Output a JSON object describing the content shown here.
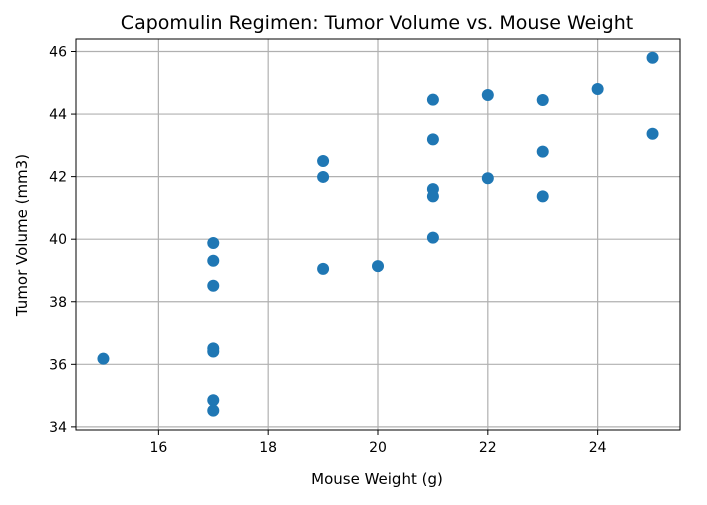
{
  "chart_data": {
    "type": "scatter",
    "title": "Capomulin Regimen: Tumor Volume vs. Mouse Weight",
    "xlabel": "Mouse Weight (g)",
    "ylabel": "Tumor Volume (mm3)",
    "xlim": [
      14.5,
      25.5
    ],
    "ylim": [
      33.9,
      46.4
    ],
    "xticks": [
      16,
      18,
      20,
      22,
      24
    ],
    "yticks": [
      34,
      36,
      38,
      40,
      42,
      44,
      46
    ],
    "grid": true,
    "marker_color": "#1f77b4",
    "points": [
      {
        "x": 15,
        "y": 36.18
      },
      {
        "x": 17,
        "y": 39.88
      },
      {
        "x": 17,
        "y": 39.31
      },
      {
        "x": 17,
        "y": 38.51
      },
      {
        "x": 17,
        "y": 36.51
      },
      {
        "x": 17,
        "y": 36.41
      },
      {
        "x": 17,
        "y": 34.85
      },
      {
        "x": 17,
        "y": 34.52
      },
      {
        "x": 19,
        "y": 42.5
      },
      {
        "x": 19,
        "y": 41.99
      },
      {
        "x": 19,
        "y": 39.05
      },
      {
        "x": 20,
        "y": 39.14
      },
      {
        "x": 21,
        "y": 44.46
      },
      {
        "x": 21,
        "y": 43.19
      },
      {
        "x": 21,
        "y": 41.6
      },
      {
        "x": 21,
        "y": 41.37
      },
      {
        "x": 21,
        "y": 40.05
      },
      {
        "x": 22,
        "y": 44.61
      },
      {
        "x": 22,
        "y": 41.95
      },
      {
        "x": 23,
        "y": 44.45
      },
      {
        "x": 23,
        "y": 42.8
      },
      {
        "x": 23,
        "y": 41.37
      },
      {
        "x": 24,
        "y": 44.8
      },
      {
        "x": 25,
        "y": 45.8
      },
      {
        "x": 25,
        "y": 43.37
      }
    ]
  }
}
